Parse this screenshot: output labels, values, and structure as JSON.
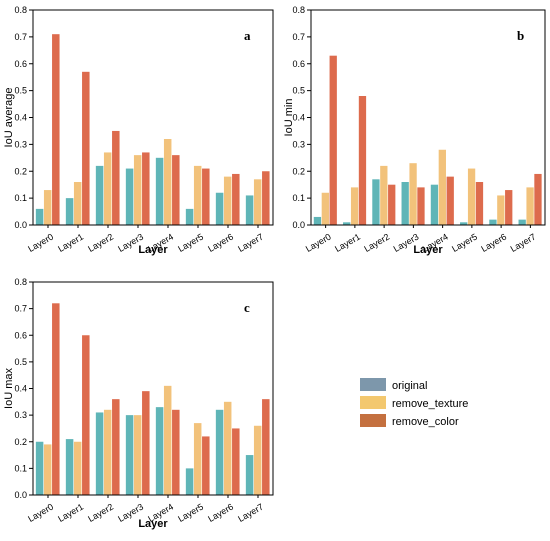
{
  "colors": {
    "original": "#5fb5b7",
    "remove_texture": "#f2c27b",
    "remove_color": "#dd6b4d",
    "legend_original": "#7d97ab",
    "legend_remove_texture": "#f3c86f",
    "legend_remove_color": "#c4703f"
  },
  "legend": {
    "items": [
      {
        "label": "original",
        "color_key": "legend_original"
      },
      {
        "label": "remove_texture",
        "color_key": "legend_remove_texture"
      },
      {
        "label": "remove_color",
        "color_key": "legend_remove_color"
      }
    ]
  },
  "chart_data": [
    {
      "type": "bar",
      "panel": "a",
      "ylabel": "IoU average",
      "xlabel": "Layer",
      "ylim": [
        0,
        0.8
      ],
      "yticks": [
        "0.0",
        "0.1",
        "0.2",
        "0.3",
        "0.4",
        "0.5",
        "0.6",
        "0.7",
        "0.8"
      ],
      "categories": [
        "Layer0",
        "Layer1",
        "Layer2",
        "Layer3",
        "Layer4",
        "Layer5",
        "Layer6",
        "Layer7"
      ],
      "series": [
        {
          "name": "original",
          "values": [
            0.06,
            0.1,
            0.22,
            0.21,
            0.25,
            0.06,
            0.12,
            0.11
          ]
        },
        {
          "name": "remove_texture",
          "values": [
            0.13,
            0.16,
            0.27,
            0.26,
            0.32,
            0.22,
            0.18,
            0.17
          ]
        },
        {
          "name": "remove_color",
          "values": [
            0.71,
            0.57,
            0.35,
            0.27,
            0.26,
            0.21,
            0.19,
            0.2
          ]
        }
      ]
    },
    {
      "type": "bar",
      "panel": "b",
      "ylabel": "IoU min",
      "xlabel": "Layer",
      "ylim": [
        0,
        0.8
      ],
      "yticks": [
        "0.0",
        "0.1",
        "0.2",
        "0.3",
        "0.4",
        "0.5",
        "0.6",
        "0.7",
        "0.8"
      ],
      "categories": [
        "Layer0",
        "Layer1",
        "Layer2",
        "Layer3",
        "Layer4",
        "Layer5",
        "Layer6",
        "Layer7"
      ],
      "series": [
        {
          "name": "original",
          "values": [
            0.03,
            0.01,
            0.17,
            0.16,
            0.15,
            0.01,
            0.02,
            0.02
          ]
        },
        {
          "name": "remove_texture",
          "values": [
            0.12,
            0.14,
            0.22,
            0.23,
            0.28,
            0.21,
            0.11,
            0.14
          ]
        },
        {
          "name": "remove_color",
          "values": [
            0.63,
            0.48,
            0.15,
            0.14,
            0.18,
            0.16,
            0.13,
            0.19
          ]
        }
      ]
    },
    {
      "type": "bar",
      "panel": "c",
      "ylabel": "IoU max",
      "xlabel": "Layer",
      "ylim": [
        0,
        0.8
      ],
      "yticks": [
        "0.0",
        "0.1",
        "0.2",
        "0.3",
        "0.4",
        "0.5",
        "0.6",
        "0.7",
        "0.8"
      ],
      "categories": [
        "Layer0",
        "Layer1",
        "Layer2",
        "Layer3",
        "Layer4",
        "Layer5",
        "Layer6",
        "Layer7"
      ],
      "series": [
        {
          "name": "original",
          "values": [
            0.2,
            0.21,
            0.31,
            0.3,
            0.33,
            0.1,
            0.32,
            0.15
          ]
        },
        {
          "name": "remove_texture",
          "values": [
            0.19,
            0.2,
            0.32,
            0.3,
            0.41,
            0.27,
            0.35,
            0.26
          ]
        },
        {
          "name": "remove_color",
          "values": [
            0.72,
            0.6,
            0.36,
            0.39,
            0.32,
            0.22,
            0.25,
            0.36
          ]
        }
      ]
    }
  ]
}
